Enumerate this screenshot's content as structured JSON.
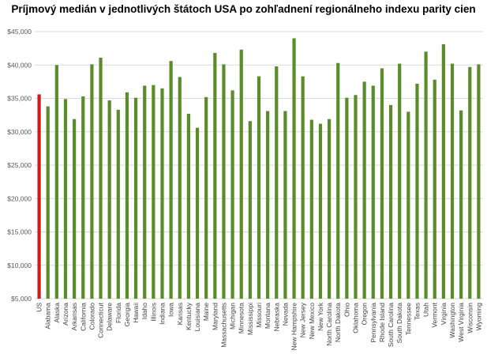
{
  "chart_data": {
    "type": "bar",
    "title": "Príjmový medián v jednotlivých štátoch USA po zohľadnení regionálneho indexu parity cien",
    "xlabel": "",
    "ylabel": "",
    "ylim": [
      5000,
      45000
    ],
    "yticks": [
      5000,
      10000,
      15000,
      20000,
      25000,
      30000,
      35000,
      40000,
      45000
    ],
    "ytick_labels": [
      "$5,000",
      "$10,000",
      "$15,000",
      "$20,000",
      "$25,000",
      "$30,000",
      "$35,000",
      "$40,000",
      "$45,000"
    ],
    "grid": true,
    "legend": "none",
    "categories": [
      "US",
      "Alabama",
      "Alaska",
      "Arizona",
      "Arkansas",
      "California",
      "Colorado",
      "Connecticut",
      "Delaware",
      "Florida",
      "Georgia",
      "Hawaii",
      "Idaho",
      "Illinois",
      "Indiana",
      "Iowa",
      "Kansas",
      "Kentucky",
      "Louisiana",
      "Maine",
      "Maryland",
      "Massachusetts",
      "Michigan",
      "Minnesota",
      "Mississippi",
      "Missouri",
      "Montana",
      "Nebraska",
      "Nevada",
      "New Hampshire",
      "New Jersey",
      "New Mexico",
      "New York",
      "North Carolina",
      "North Dakota",
      "Ohio",
      "Oklahoma",
      "Oregon",
      "Pennsylvania",
      "Rhode Island",
      "South Carolina",
      "South Dakota",
      "Tennessee",
      "Texas",
      "Utah",
      "Vermont",
      "Virginia",
      "Washington",
      "West Virginia",
      "Wisconsin",
      "Wyoming"
    ],
    "values": [
      35600,
      33800,
      40000,
      34900,
      31900,
      35300,
      40100,
      41100,
      34700,
      33300,
      35900,
      35100,
      36900,
      37000,
      36500,
      40600,
      38200,
      32700,
      30600,
      35200,
      41800,
      40100,
      36200,
      42300,
      31600,
      38300,
      33100,
      39800,
      33100,
      44000,
      38300,
      31800,
      31200,
      31900,
      40300,
      35100,
      35500,
      37500,
      36900,
      39500,
      34000,
      40200,
      33000,
      37200,
      42000,
      37800,
      43100,
      40200,
      33200,
      39700,
      40100
    ],
    "colors": {
      "highlight": "#d11919",
      "bars": "#5b8c2a",
      "grid": "#d9d9d9"
    }
  }
}
